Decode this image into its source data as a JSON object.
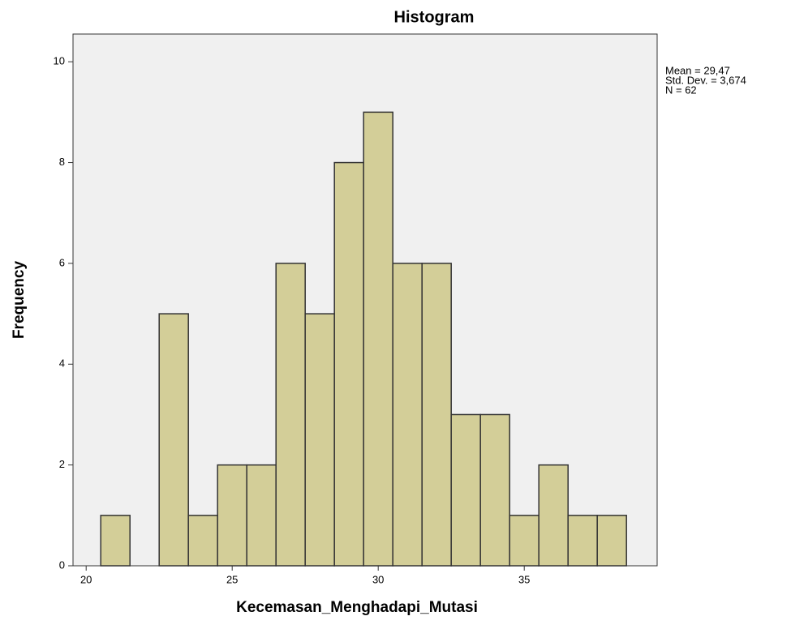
{
  "chart_data": {
    "type": "histogram",
    "title": "Histogram",
    "xlabel": "Kecemasan_Menghadapi_Mutasi",
    "ylabel": "Frequency",
    "annotations": [
      "Mean = 29,47",
      "Std. Dev. = 3,674",
      "N = 62"
    ],
    "bins": [
      20.5,
      21.5,
      22.5,
      23.5,
      24.5,
      25.5,
      26.5,
      27.5,
      28.5,
      29.5,
      30.5,
      31.5,
      32.5,
      33.5,
      34.5,
      35.5,
      36.5,
      37.5,
      38.5
    ],
    "counts": [
      1,
      0,
      5,
      1,
      2,
      2,
      6,
      5,
      8,
      9,
      6,
      6,
      3,
      3,
      1,
      2,
      1,
      1
    ],
    "color": "#d3ce98",
    "xlim": [
      19.55,
      39.55
    ],
    "ylim": [
      0,
      10.55
    ],
    "xticks": [
      20,
      25,
      30,
      35
    ],
    "yticks": [
      0,
      2,
      4,
      6,
      8,
      10
    ]
  }
}
